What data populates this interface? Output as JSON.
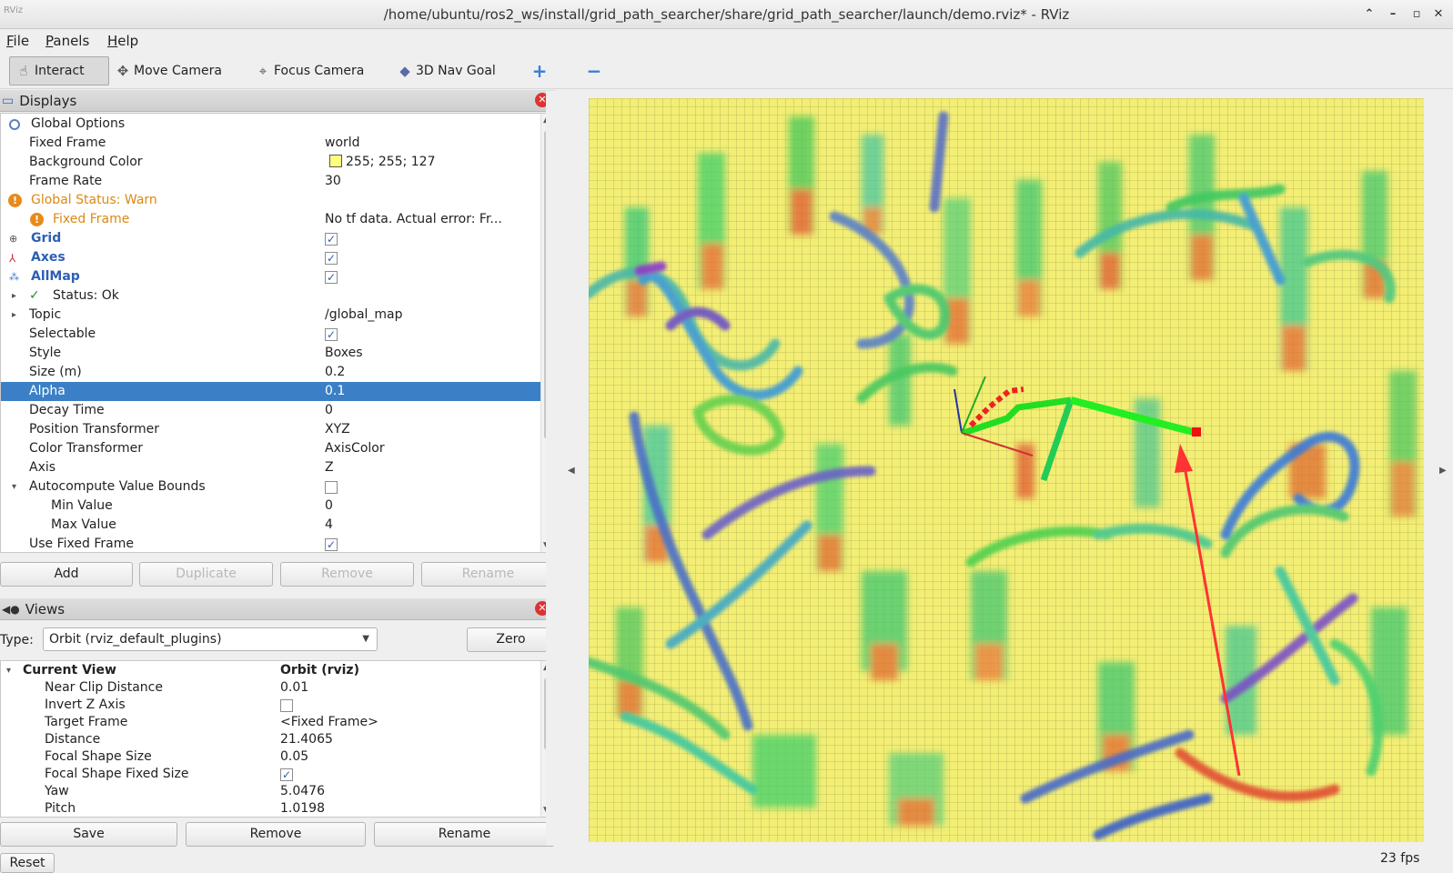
{
  "window": {
    "title": "/home/ubuntu/ros2_ws/install/grid_path_searcher/share/grid_path_searcher/launch/demo.rviz* - RViz",
    "app_icon": "RViz"
  },
  "menu": {
    "file": {
      "first": "F",
      "rest": "ile"
    },
    "panels": {
      "first": "P",
      "rest": "anels"
    },
    "help": {
      "first": "H",
      "rest": "elp"
    }
  },
  "toolbar": {
    "interact": "Interact",
    "move_camera": "Move Camera",
    "focus_camera": "Focus Camera",
    "nav_goal": "3D Nav Goal"
  },
  "displays": {
    "title": "Displays",
    "rows": [
      {
        "label": "Global Options",
        "value": ""
      },
      {
        "label": "Fixed Frame",
        "value": "world"
      },
      {
        "label": "Background Color",
        "value": "255; 255; 127"
      },
      {
        "label": "Frame Rate",
        "value": "30"
      },
      {
        "label": "Global Status: Warn",
        "value": ""
      },
      {
        "label": "Fixed Frame",
        "value": "No tf data.  Actual error: Fr..."
      },
      {
        "label": "Grid",
        "value": ""
      },
      {
        "label": "Axes",
        "value": ""
      },
      {
        "label": "AllMap",
        "value": ""
      },
      {
        "label": "Status: Ok",
        "value": ""
      },
      {
        "label": "Topic",
        "value": "/global_map"
      },
      {
        "label": "Selectable",
        "value": ""
      },
      {
        "label": "Style",
        "value": "Boxes"
      },
      {
        "label": "Size (m)",
        "value": "0.2"
      },
      {
        "label": "Alpha",
        "value": "0.1"
      },
      {
        "label": "Decay Time",
        "value": "0"
      },
      {
        "label": "Position Transformer",
        "value": "XYZ"
      },
      {
        "label": "Color Transformer",
        "value": "AxisColor"
      },
      {
        "label": "Axis",
        "value": "Z"
      },
      {
        "label": "Autocompute Value Bounds",
        "value": ""
      },
      {
        "label": "Min Value",
        "value": "0"
      },
      {
        "label": "Max Value",
        "value": "4"
      },
      {
        "label": "Use Fixed Frame",
        "value": ""
      }
    ],
    "buttons": {
      "add": "Add",
      "duplicate": "Duplicate",
      "remove": "Remove",
      "rename": "Rename"
    }
  },
  "views": {
    "title": "Views",
    "type_label": "Type:",
    "type_value": "Orbit (rviz_default_plugins)",
    "zero": "Zero",
    "header": {
      "label": "Current View",
      "value": "Orbit (rviz)"
    },
    "rows": [
      {
        "label": "Near Clip Distance",
        "value": "0.01"
      },
      {
        "label": "Invert Z Axis",
        "value": ""
      },
      {
        "label": "Target Frame",
        "value": "<Fixed Frame>"
      },
      {
        "label": "Distance",
        "value": "21.4065"
      },
      {
        "label": "Focal Shape Size",
        "value": "0.05"
      },
      {
        "label": "Focal Shape Fixed Size",
        "value": ""
      },
      {
        "label": "Yaw",
        "value": "5.0476"
      },
      {
        "label": "Pitch",
        "value": "1.0198"
      }
    ],
    "buttons": {
      "save": "Save",
      "remove": "Remove",
      "rename": "Rename"
    }
  },
  "reset": "Reset",
  "fps": "23 fps",
  "colors": {
    "background": "#ffff7f",
    "selection": "#3b80c6",
    "warn": "#d98a15",
    "path": "#22dd22",
    "arrow": "#ff3333"
  }
}
